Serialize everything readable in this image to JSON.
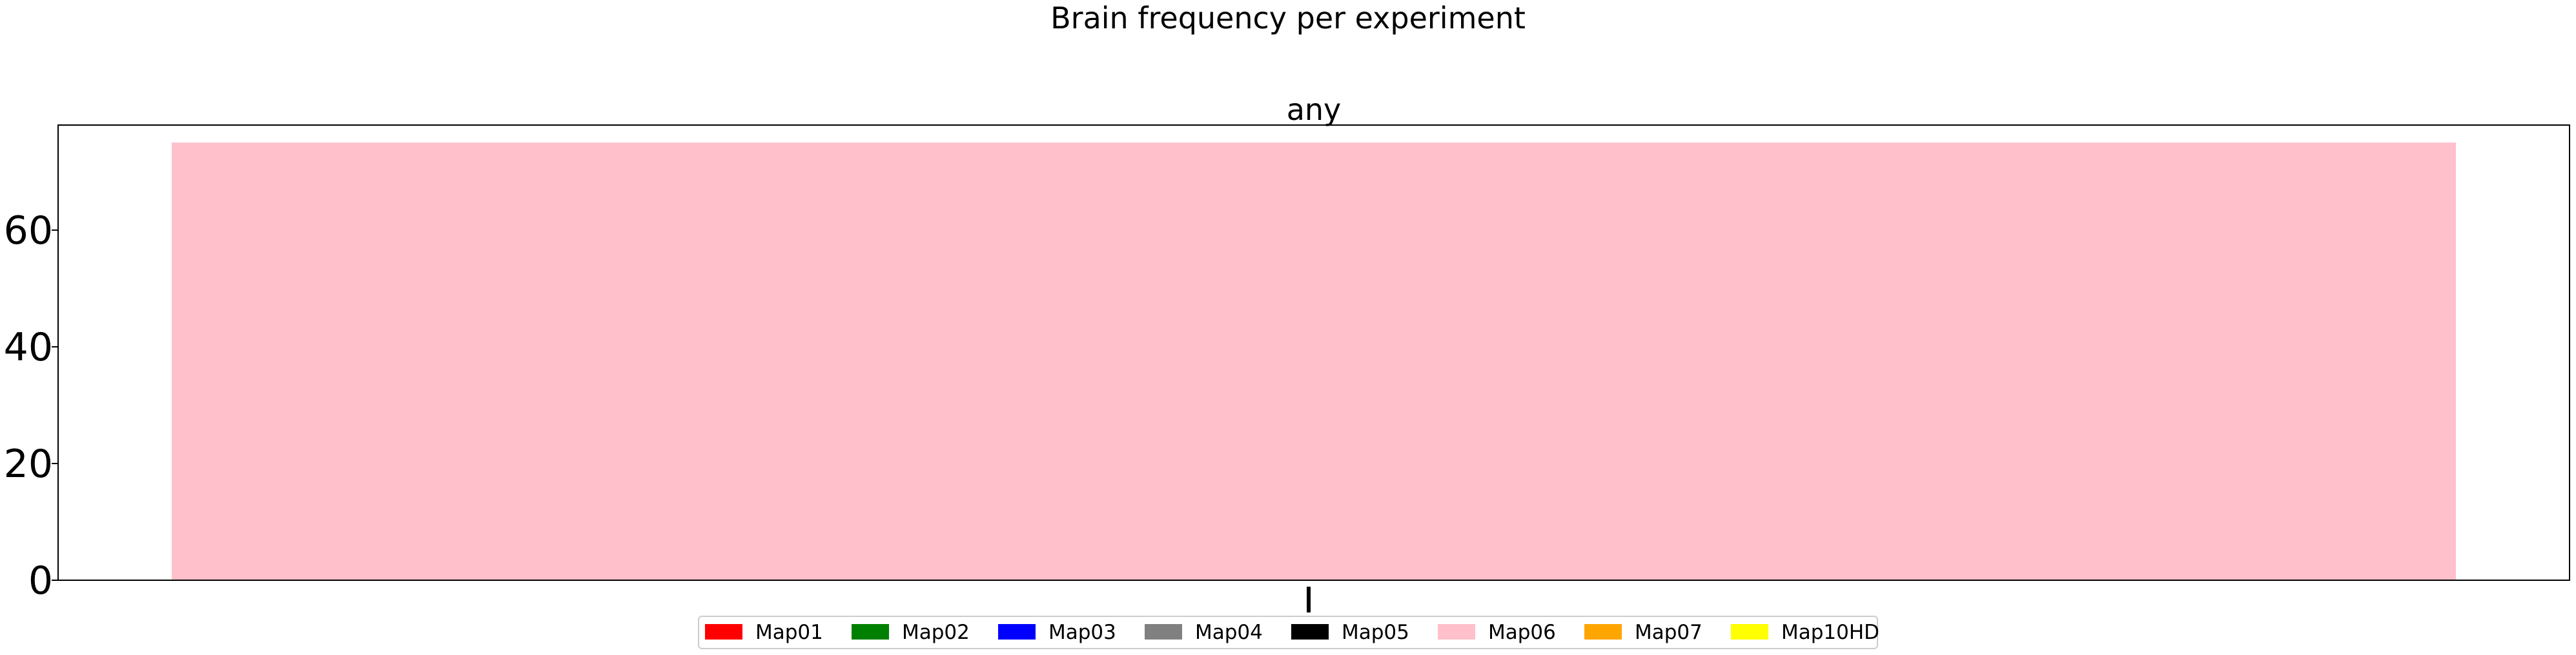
{
  "chart_data": {
    "type": "bar",
    "title": "Brain frequency per experiment",
    "subplot_title": "any",
    "xlabel": "",
    "ylabel": "",
    "categories": [
      ""
    ],
    "ylim": [
      0,
      78
    ],
    "yticks": [
      "0",
      "20",
      "40",
      "60"
    ],
    "series": [
      {
        "name": "Map01",
        "color": "#ff0000",
        "values": [
          0
        ]
      },
      {
        "name": "Map02",
        "color": "#008000",
        "values": [
          0
        ]
      },
      {
        "name": "Map03",
        "color": "#0000ff",
        "values": [
          0
        ]
      },
      {
        "name": "Map04",
        "color": "#808080",
        "values": [
          0
        ]
      },
      {
        "name": "Map05",
        "color": "#000000",
        "values": [
          0
        ]
      },
      {
        "name": "Map06",
        "color": "#ffc0cb",
        "values": [
          75
        ]
      },
      {
        "name": "Map07",
        "color": "#ffa500",
        "values": [
          0
        ]
      },
      {
        "name": "Map10HD",
        "color": "#ffff00",
        "values": [
          0
        ]
      }
    ],
    "legend_position": "bottom-center",
    "grid": false
  }
}
